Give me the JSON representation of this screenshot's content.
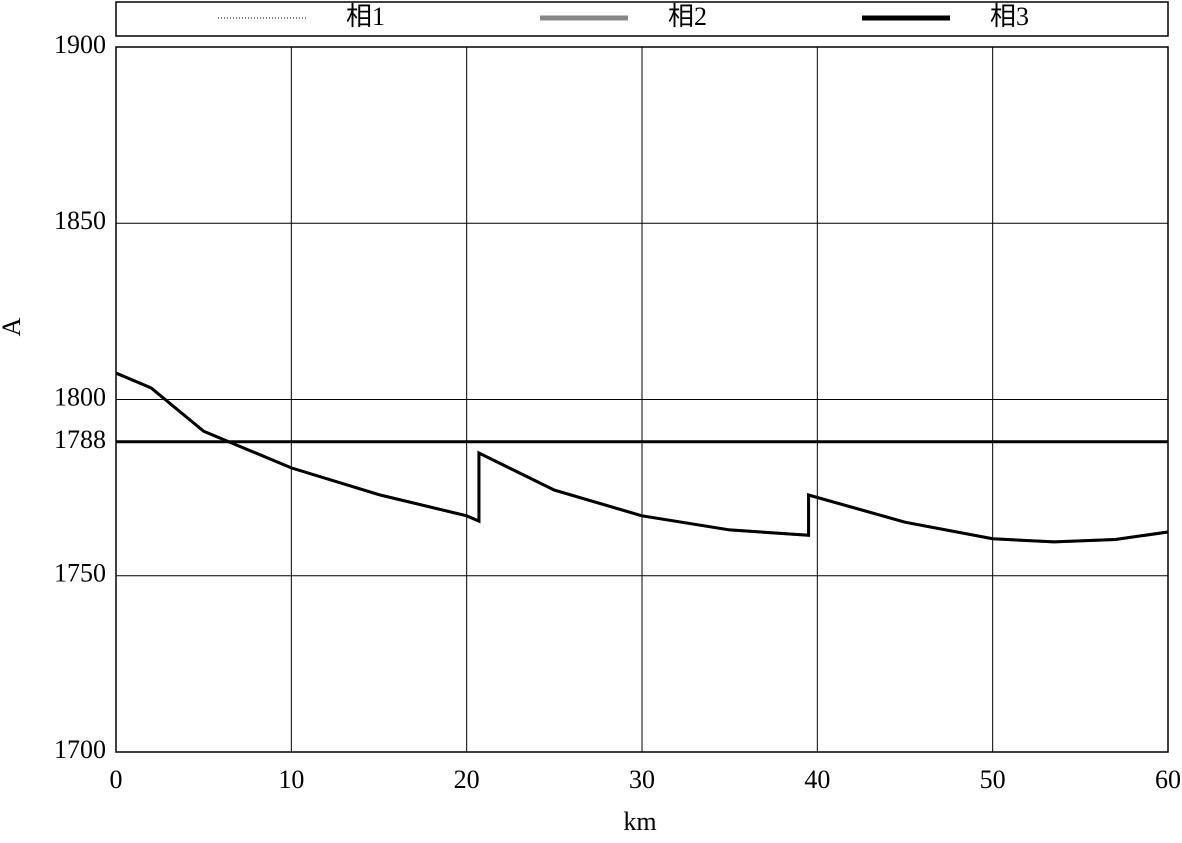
{
  "chart_data": {
    "type": "line",
    "xlabel": "km",
    "ylabel": "A",
    "x": [
      0,
      2,
      5,
      10,
      15,
      20,
      20.7,
      20.7,
      25,
      30,
      35,
      39.5,
      39.5,
      45,
      50,
      53.5,
      57,
      60
    ],
    "series": [
      {
        "name": "相1",
        "color": "#000000",
        "style": "dotted",
        "values": [
          1807.5,
          1803.3,
          1791,
          1780.6,
          1773,
          1767,
          1765.5,
          1784.8,
          1774.3,
          1767,
          1763,
          1761.5,
          1772.9,
          1765.2,
          1760.5,
          1759.6,
          1760.3,
          1762.4
        ]
      },
      {
        "name": "相2",
        "color": "#888888",
        "style": "solid",
        "values": [
          1807.5,
          1803.3,
          1791,
          1780.6,
          1773,
          1767,
          1765.5,
          1784.8,
          1774.3,
          1767,
          1763,
          1761.5,
          1772.9,
          1765.2,
          1760.5,
          1759.6,
          1760.3,
          1762.4
        ]
      },
      {
        "name": "相3",
        "color": "#000000",
        "style": "solid",
        "values": [
          1807.5,
          1803.3,
          1791,
          1780.6,
          1773,
          1767,
          1765.5,
          1784.8,
          1774.3,
          1767,
          1763,
          1761.5,
          1772.9,
          1765.2,
          1760.5,
          1759.6,
          1760.3,
          1762.4
        ]
      }
    ],
    "threshold": 1788,
    "xlim": [
      0,
      60
    ],
    "xticks": [
      0,
      10,
      20,
      30,
      40,
      50,
      60
    ],
    "ylim": [
      1700,
      1900
    ],
    "yticks": [
      1700,
      1750,
      1788,
      1800,
      1850,
      1900
    ],
    "grid": true,
    "legend": "top"
  }
}
